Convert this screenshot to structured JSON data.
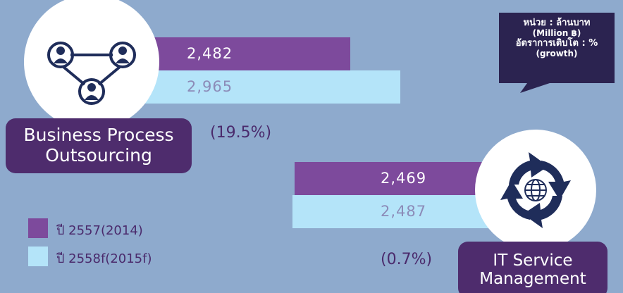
{
  "note": [
    "หน่วย : ล้านบาท",
    "(Million ฿)",
    "อัตราการเติบโต : %",
    "(growth)"
  ],
  "chart_data": [
    {
      "type": "bar",
      "categories": [
        "Business Process Outsourcing"
      ],
      "annotation": "(19.5%)",
      "series": [
        {
          "name": "ปี 2557(2014)",
          "color": "#7d4a9c",
          "values": [
            2482
          ],
          "value_labels": [
            "2,482"
          ]
        },
        {
          "name": "ปี 2558f(2015f)",
          "color": "#b4e4f9",
          "values": [
            2965
          ],
          "value_labels": [
            "2,965"
          ]
        }
      ]
    },
    {
      "type": "bar",
      "categories": [
        "IT Service Management"
      ],
      "annotation": "(0.7%)",
      "series": [
        {
          "color": "#7d4a9c",
          "values": [
            2469
          ],
          "value_labels": [
            "2,469"
          ]
        },
        {
          "color": "#b4e4f9",
          "values": [
            2487
          ],
          "value_labels": [
            "2,487"
          ]
        }
      ]
    }
  ]
}
